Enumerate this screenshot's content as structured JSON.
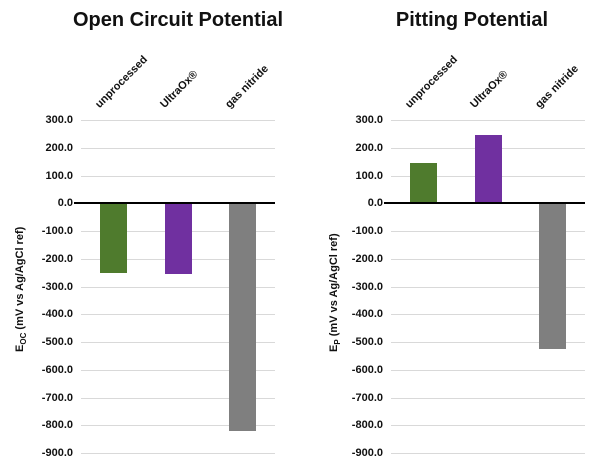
{
  "chart_data": [
    {
      "type": "bar",
      "title": "Open Circuit Potential",
      "ylabel": {
        "symbol": "E",
        "subscript": "OC",
        "rest": " (mV vs Ag/AgCl ref)"
      },
      "categories": [
        "unprocessed",
        "UltraOx®",
        "gas nitride"
      ],
      "values": [
        -250,
        -255,
        -820
      ],
      "bar_colors": [
        "#4f7b2d",
        "#7030a0",
        "#7f7f7f"
      ],
      "ylim": [
        -900,
        300
      ],
      "yticks": [
        300,
        200,
        100,
        0,
        -100,
        -200,
        -300,
        -400,
        -500,
        -600,
        -700,
        -800,
        -900
      ],
      "ytick_labels": [
        "300.0",
        "200.0",
        "100.0",
        "0.0",
        "-100.0",
        "-200.0",
        "-300.0",
        "-400.0",
        "-500.0",
        "-600.0",
        "-700.0",
        "-800.0",
        "-900.0"
      ],
      "grid": true,
      "legend": false,
      "gridline_color": "#d9d9d9",
      "zero_axis_color": "#000000"
    },
    {
      "type": "bar",
      "title": "Pitting Potential",
      "ylabel": {
        "symbol": "E",
        "subscript": "P",
        "rest": " (mV vs Ag/AgCl ref)"
      },
      "categories": [
        "unprocessed",
        "UltraOx®",
        "gas nitride"
      ],
      "values": [
        145,
        245,
        -525
      ],
      "bar_colors": [
        "#4f7b2d",
        "#7030a0",
        "#7f7f7f"
      ],
      "ylim": [
        -900,
        300
      ],
      "yticks": [
        300,
        200,
        100,
        0,
        -100,
        -200,
        -300,
        -400,
        -500,
        -600,
        -700,
        -800,
        -900
      ],
      "ytick_labels": [
        "300.0",
        "200.0",
        "100.0",
        "0.0",
        "-100.0",
        "-200.0",
        "-300.0",
        "-400.0",
        "-500.0",
        "-600.0",
        "-700.0",
        "-800.0",
        "-900.0"
      ],
      "grid": true,
      "legend": false,
      "gridline_color": "#d9d9d9",
      "zero_axis_color": "#000000"
    }
  ]
}
